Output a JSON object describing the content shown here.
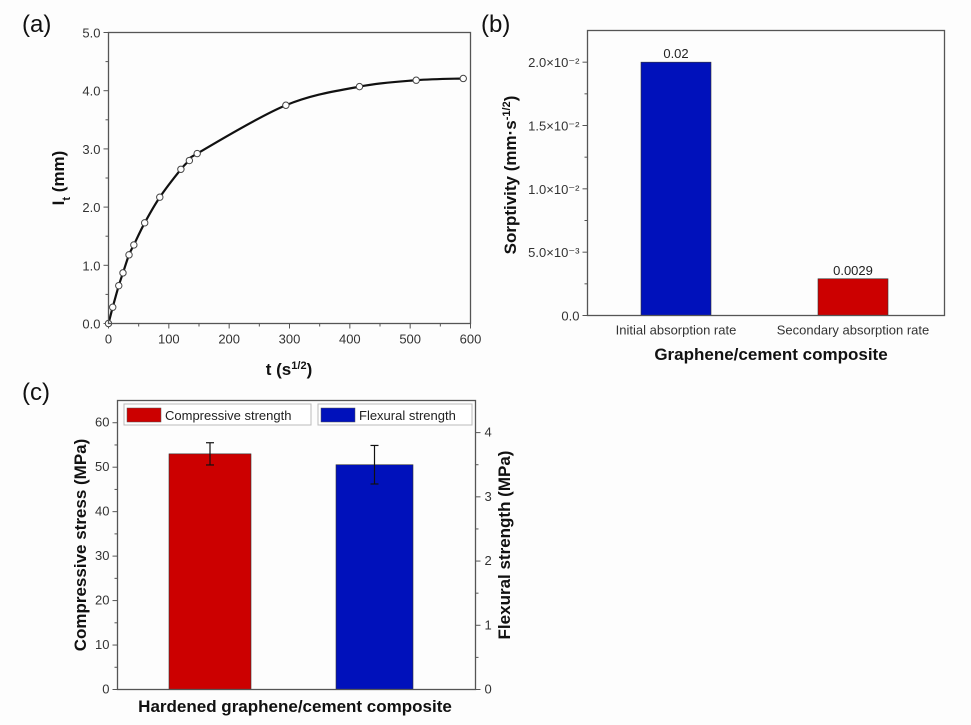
{
  "chart_data": [
    {
      "panel": "(a)",
      "type": "line",
      "title": "",
      "xlabel": "t (s",
      "xlabel_sup": "1/2",
      "xlabel_suffix": ")",
      "ylabel": "I",
      "ylabel_sub": "t",
      "ylabel_suffix": " (mm)",
      "xlim": [
        0,
        600
      ],
      "ylim": [
        0,
        5.0
      ],
      "xticks": [
        0,
        100,
        200,
        300,
        400,
        500,
        600
      ],
      "xtick_labels": [
        "0",
        "100",
        "200",
        "300",
        "400",
        "500",
        "600"
      ],
      "yticks": [
        0,
        1,
        2,
        3,
        4,
        5
      ],
      "ytick_labels": [
        "0.0",
        "1.0",
        "2.0",
        "3.0",
        "4.0",
        "5.0"
      ],
      "grid": false,
      "series": [
        {
          "name": "I_t",
          "marker": "open-circle",
          "color": "#111111",
          "x": [
            0,
            7,
            17,
            24,
            34,
            42,
            60,
            85,
            120,
            134,
            147,
            294,
            416,
            510,
            588
          ],
          "y": [
            0.0,
            0.28,
            0.65,
            0.87,
            1.18,
            1.35,
            1.73,
            2.17,
            2.65,
            2.8,
            2.92,
            3.75,
            4.07,
            4.18,
            4.21
          ]
        }
      ]
    },
    {
      "panel": "(b)",
      "type": "bar",
      "title": "",
      "xlabel": "Graphene/cement composite",
      "ylabel": "Sorptivity (mm·s",
      "ylabel_sup": "-1/2",
      "ylabel_suffix": ")",
      "categories": [
        "Initial absorption rate",
        "Secondary absorption rate"
      ],
      "values": [
        0.02,
        0.0029
      ],
      "data_labels": [
        "0.02",
        "0.0029"
      ],
      "colors": [
        "#0011bb",
        "#cc0000"
      ],
      "ylim": [
        0,
        0.0225
      ],
      "yticks": [
        0,
        0.005,
        0.01,
        0.015,
        0.02
      ],
      "ytick_labels": [
        "0.0",
        "5.0×10⁻³",
        "1.0×10⁻²",
        "1.5×10⁻²",
        "2.0×10⁻²"
      ],
      "grid": false
    },
    {
      "panel": "(c)",
      "type": "bar",
      "title": "",
      "xlabel": "Hardened graphene/cement composite",
      "ylabel": "Compressive stress (MPa)",
      "ylabel_right": "Flexural strength (MPa)",
      "ylim": [
        0,
        65
      ],
      "ylim_right": [
        0,
        4.5
      ],
      "yticks": [
        0,
        10,
        20,
        30,
        40,
        50,
        60
      ],
      "ytick_labels": [
        "0",
        "10",
        "20",
        "30",
        "40",
        "50",
        "60"
      ],
      "yticks_right": [
        0,
        1,
        2,
        3,
        4
      ],
      "ytick_labels_right": [
        "0",
        "1",
        "2",
        "3",
        "4"
      ],
      "legend_position": "top",
      "grid": false,
      "series": [
        {
          "name": "Compressive strength",
          "axis": "left",
          "value": 53.0,
          "error": 2.5,
          "color": "#cc0000"
        },
        {
          "name": "Flexural strength",
          "axis": "right",
          "value": 3.5,
          "error": 0.3,
          "color": "#0011bb"
        }
      ]
    }
  ]
}
